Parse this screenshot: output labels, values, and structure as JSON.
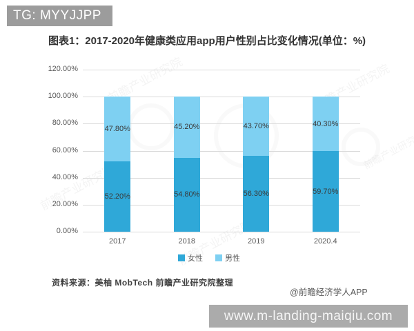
{
  "badge": {
    "text": "TG: MYYJJPP"
  },
  "source": {
    "text": "资料来源：美柚 MobTech 前瞻产业研究院整理"
  },
  "credit": {
    "text": "@前瞻经济学人APP"
  },
  "url_bar": {
    "text": "www.m-landing-maiqiu.com"
  },
  "watermark": {
    "text": "前瞻产业研究院"
  },
  "colors": {
    "female_bar": "#2FA8D8",
    "male_bar": "#7ED0F2",
    "gridline": "#D9D9D9",
    "badge_bg": "#9C9C9C",
    "url_bar_bg": "#ABABAB"
  },
  "chart_data": {
    "type": "bar",
    "stacked": true,
    "title": "图表1：2017-2020年健康类应用app用户性别占比变化情况(单位：%)",
    "categories": [
      "2017",
      "2018",
      "2019",
      "2020.4"
    ],
    "series": [
      {
        "name": "女性",
        "color": "#2FA8D8",
        "values": [
          52.2,
          54.8,
          56.3,
          59.7
        ],
        "labels": [
          "52.20%",
          "54.80%",
          "56.30%",
          "59.70%"
        ]
      },
      {
        "name": "男性",
        "color": "#7ED0F2",
        "values": [
          47.8,
          45.2,
          43.7,
          40.3
        ],
        "labels": [
          "47.80%",
          "45.20%",
          "43.70%",
          "40.30%"
        ]
      }
    ],
    "yticks": [
      {
        "value": 0,
        "label": "0.00%"
      },
      {
        "value": 20,
        "label": "20.00%"
      },
      {
        "value": 40,
        "label": "40.00%"
      },
      {
        "value": 60,
        "label": "60.00%"
      },
      {
        "value": 80,
        "label": "80.00%"
      },
      {
        "value": 100,
        "label": "100.00%"
      },
      {
        "value": 120,
        "label": "120.00%"
      }
    ],
    "ylim": [
      0,
      120
    ],
    "grid": true,
    "legend_position": "bottom"
  }
}
